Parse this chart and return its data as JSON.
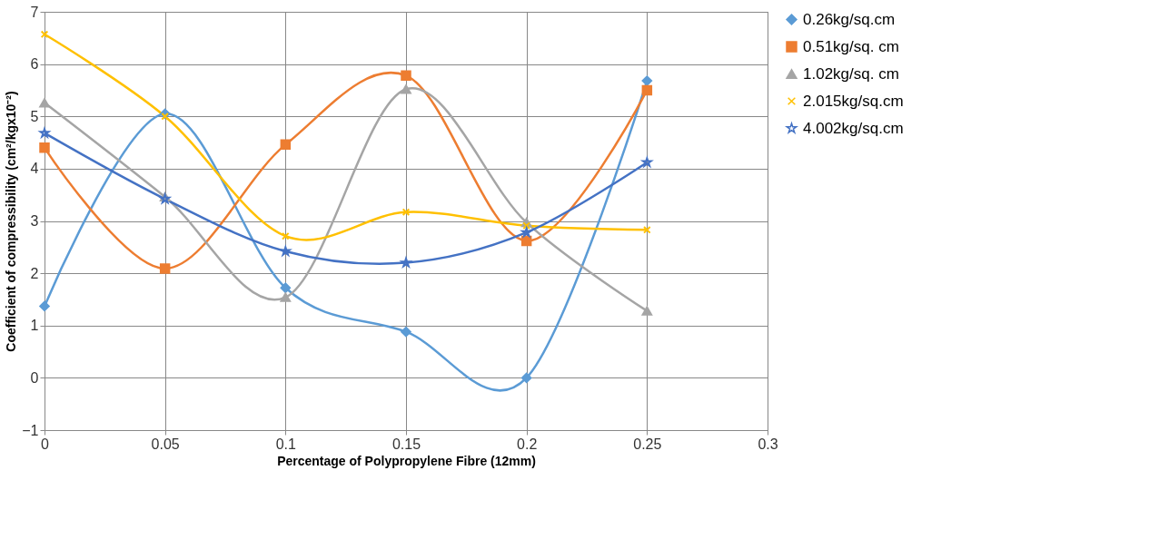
{
  "chart_data": {
    "type": "line",
    "xlabel": "Percentage of Polypropylene Fibre (12mm)",
    "ylabel": "Coefficient of compressibility (cm²/kgx10⁻²)",
    "x": [
      0,
      0.05,
      0.1,
      0.15,
      0.2,
      0.25
    ],
    "xlim": [
      0,
      0.3
    ],
    "xticks": [
      0,
      0.05,
      0.1,
      0.15,
      0.2,
      0.25,
      0.3
    ],
    "ylim": [
      -1,
      7
    ],
    "yticks": [
      -1,
      0,
      1,
      2,
      3,
      4,
      5,
      6,
      7
    ],
    "grid": true,
    "legend": "right",
    "line_style": "solid",
    "series": [
      {
        "name": "0.26kg/sq.cm",
        "color": "#5b9bd5",
        "marker": "diamond",
        "values": [
          1.37,
          5.05,
          1.72,
          0.88,
          0,
          5.68
        ]
      },
      {
        "name": "0.51kg/sq. cm",
        "color": "#ed7d31",
        "marker": "square",
        "values": [
          4.4,
          2.09,
          4.46,
          5.78,
          2.62,
          5.5
        ]
      },
      {
        "name": "1.02kg/sq. cm",
        "color": "#a5a5a5",
        "marker": "triangle",
        "values": [
          5.26,
          3.46,
          1.54,
          5.52,
          2.97,
          1.28
        ]
      },
      {
        "name": "2.015kg/sq.cm",
        "color": "#ffc000",
        "marker": "cross",
        "values": [
          6.57,
          5.0,
          2.71,
          3.17,
          2.91,
          2.83
        ]
      },
      {
        "name": "4.002kg/sq.cm",
        "color": "#4472c4",
        "marker": "star",
        "values": [
          4.68,
          3.42,
          2.42,
          2.2,
          2.78,
          4.12
        ]
      }
    ]
  }
}
